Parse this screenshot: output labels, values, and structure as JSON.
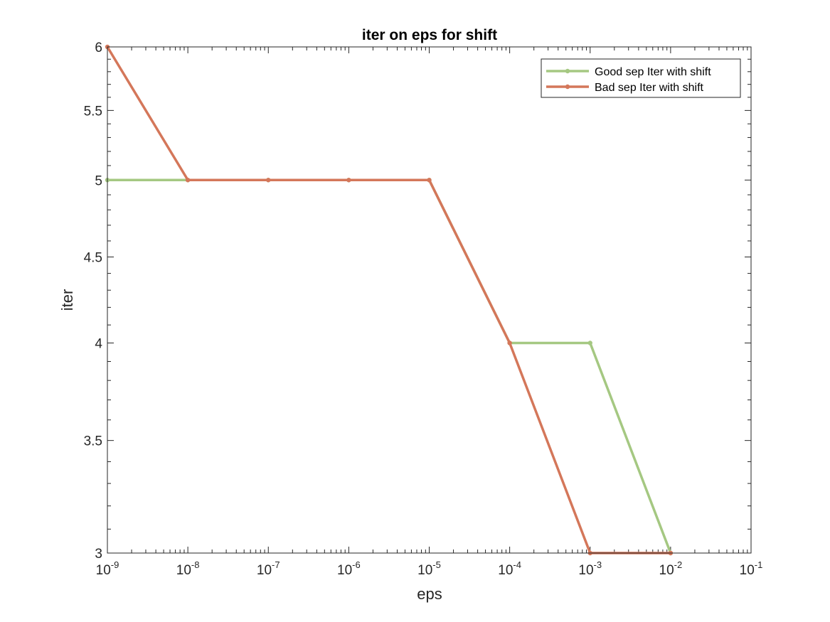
{
  "chart_data": {
    "type": "line",
    "title": "iter on eps for shift",
    "xlabel": "eps",
    "ylabel": "iter",
    "x_scale": "log",
    "y_scale": "log",
    "xlim": [
      1e-09,
      0.1
    ],
    "ylim": [
      3,
      6
    ],
    "x_ticks": [
      {
        "value": 1e-09,
        "base": "10",
        "exp": "-9"
      },
      {
        "value": 1e-08,
        "base": "10",
        "exp": "-8"
      },
      {
        "value": 1e-07,
        "base": "10",
        "exp": "-7"
      },
      {
        "value": 1e-06,
        "base": "10",
        "exp": "-6"
      },
      {
        "value": 1e-05,
        "base": "10",
        "exp": "-5"
      },
      {
        "value": 0.0001,
        "base": "10",
        "exp": "-4"
      },
      {
        "value": 0.001,
        "base": "10",
        "exp": "-3"
      },
      {
        "value": 0.01,
        "base": "10",
        "exp": "-2"
      },
      {
        "value": 0.1,
        "base": "10",
        "exp": "-1"
      }
    ],
    "y_ticks": [
      {
        "value": 3,
        "label": "3"
      },
      {
        "value": 3.5,
        "label": "3.5"
      },
      {
        "value": 4,
        "label": "4"
      },
      {
        "value": 4.5,
        "label": "4.5"
      },
      {
        "value": 5,
        "label": "5"
      },
      {
        "value": 5.5,
        "label": "5.5"
      },
      {
        "value": 6,
        "label": "6"
      }
    ],
    "grid": false,
    "legend_position": "top-right",
    "x": [
      1e-09,
      1e-08,
      1e-07,
      1e-06,
      1e-05,
      0.0001,
      0.001,
      0.01
    ],
    "series": [
      {
        "name": "Good sep Iter with shift",
        "color": "#a5c882",
        "values": [
          5,
          5,
          5,
          5,
          5,
          4,
          4,
          3
        ]
      },
      {
        "name": "Bad sep Iter with shift",
        "color": "#d4775a",
        "values": [
          6,
          5,
          5,
          5,
          5,
          4,
          3,
          3
        ]
      }
    ]
  }
}
